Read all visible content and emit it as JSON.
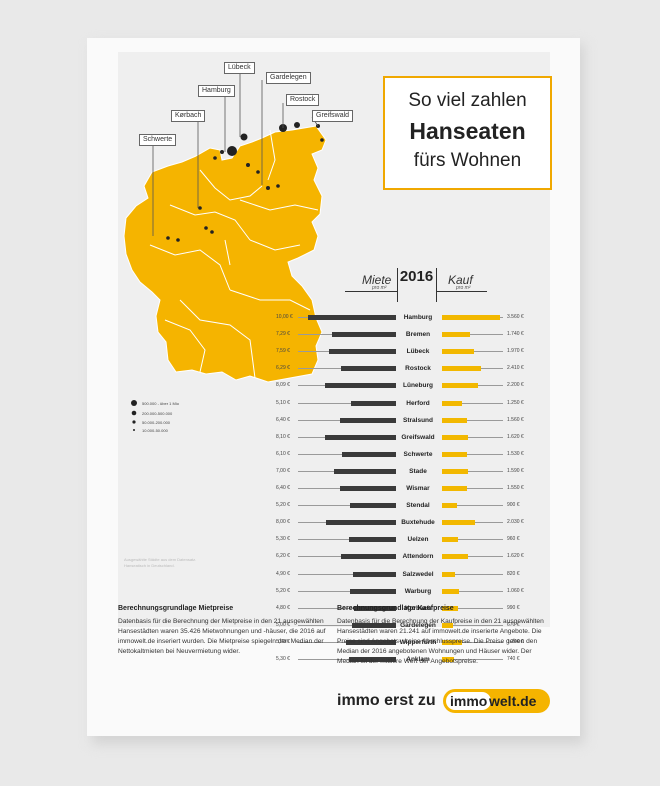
{
  "title": {
    "line1": "So viel zahlen",
    "line2": "Hanseaten",
    "line3": "fürs Wohnen"
  },
  "table_header": {
    "rent": "Miete",
    "rent_unit": "pro m²",
    "year": "2016",
    "buy": "Kauf",
    "buy_unit": "pro m²"
  },
  "map_labels": [
    "Lübeck",
    "Gardelegen",
    "Hamburg",
    "Rostock",
    "Kørbach",
    "Greifswald",
    "Schwerte"
  ],
  "legend": [
    "500.000 - über 1 Mio",
    "200.000-500.000",
    "50.000-200.000",
    "10.000-50.000"
  ],
  "source_note": "Ausgewählte Städte aus dem Datensatz. Hanseatisch in Deutschland.",
  "rows": [
    {
      "city": "Hamburg",
      "rent_label": "10,00 €",
      "rent": 10.0,
      "buy_label": "3.560 €",
      "buy": 3560
    },
    {
      "city": "Bremen",
      "rent_label": "7,29 €",
      "rent": 7.29,
      "buy_label": "1.740 €",
      "buy": 1740
    },
    {
      "city": "Lübeck",
      "rent_label": "7,59 €",
      "rent": 7.59,
      "buy_label": "1.970 €",
      "buy": 1970
    },
    {
      "city": "Rostock",
      "rent_label": "6,29 €",
      "rent": 6.29,
      "buy_label": "2.410 €",
      "buy": 2410
    },
    {
      "city": "Lüneburg",
      "rent_label": "8,09 €",
      "rent": 8.09,
      "buy_label": "2.200 €",
      "buy": 2200
    },
    {
      "city": "Herford",
      "rent_label": "5,10 €",
      "rent": 5.1,
      "buy_label": "1.250 €",
      "buy": 1250
    },
    {
      "city": "Stralsund",
      "rent_label": "6,40 €",
      "rent": 6.4,
      "buy_label": "1.560 €",
      "buy": 1560
    },
    {
      "city": "Greifswald",
      "rent_label": "8,10 €",
      "rent": 8.1,
      "buy_label": "1.620 €",
      "buy": 1620
    },
    {
      "city": "Schwerte",
      "rent_label": "6,10 €",
      "rent": 6.1,
      "buy_label": "1.530 €",
      "buy": 1530
    },
    {
      "city": "Stade",
      "rent_label": "7,00 €",
      "rent": 7.0,
      "buy_label": "1.590 €",
      "buy": 1590
    },
    {
      "city": "Wismar",
      "rent_label": "6,40 €",
      "rent": 6.4,
      "buy_label": "1.550 €",
      "buy": 1550
    },
    {
      "city": "Stendal",
      "rent_label": "5,20 €",
      "rent": 5.2,
      "buy_label": "900 €",
      "buy": 900
    },
    {
      "city": "Buxtehude",
      "rent_label": "8,00 €",
      "rent": 8.0,
      "buy_label": "2.030 €",
      "buy": 2030
    },
    {
      "city": "Uelzen",
      "rent_label": "5,30 €",
      "rent": 5.3,
      "buy_label": "960 €",
      "buy": 960
    },
    {
      "city": "Attendorn",
      "rent_label": "6,20 €",
      "rent": 6.2,
      "buy_label": "1.620 €",
      "buy": 1620
    },
    {
      "city": "Salzwedel",
      "rent_label": "4,90 €",
      "rent": 4.9,
      "buy_label": "820 €",
      "buy": 820
    },
    {
      "city": "Warburg",
      "rent_label": "5,20 €",
      "rent": 5.2,
      "buy_label": "1.060 €",
      "buy": 1060
    },
    {
      "city": "Korbach",
      "rent_label": "4,80 €",
      "rent": 4.8,
      "buy_label": "990 €",
      "buy": 990
    },
    {
      "city": "Gardelegen",
      "rent_label": "5,00 €",
      "rent": 5.0,
      "buy_label": "670 €",
      "buy": 670
    },
    {
      "city": "Wipperfürth",
      "rent_label": "5,70 €",
      "rent": 5.7,
      "buy_label": "1.240 €",
      "buy": 1240
    },
    {
      "city": "Anklam",
      "rent_label": "5,30 €",
      "rent": 5.3,
      "buy_label": "740 €",
      "buy": 740
    }
  ],
  "footer": {
    "left_heading": "Berechnungsgrundlage Mietpreise",
    "left_text": "Datenbasis für die Berechnung der Mietpreise in den 21 ausgewählten Hansestädten waren 35.426 Mietwohnungen und -häuser, die 2016 auf immowelt.de inseriert wurden. Die Mietpreise spiegeln den Median der Nettokaltmieten bei Neuvermietung wider.",
    "right_heading": "Berechnungsgrundlage Kaufpreise",
    "right_text": "Datenbasis für die Berechnung der Kaufpreise in den 21 ausgewählten Hansestädten waren 21.241 auf immowelt.de inserierte Angebote. Die Preise sind Angebots-, keine Abschlusspreise. Die Preise geben den Median der 2016 angebotenen Wohnungen und Häuser wider. Der Median ist der mittlere Wert der Angebotspreise."
  },
  "brand": {
    "slogan": "immo erst zu",
    "logo_part1": "immo",
    "logo_part2": "welt.de"
  },
  "colors": {
    "accent": "#f2b800",
    "rent_bar": "#3a3a3a"
  }
}
